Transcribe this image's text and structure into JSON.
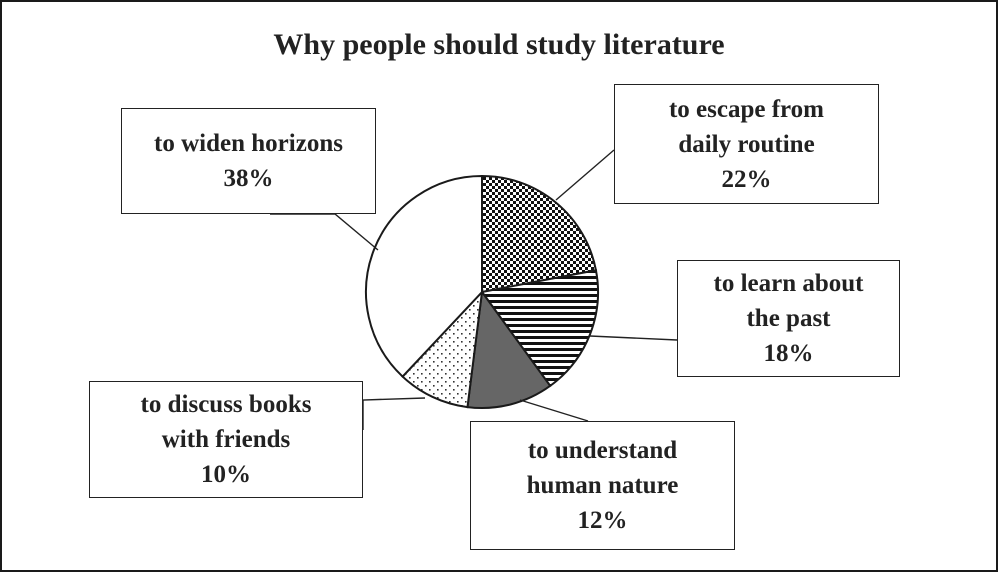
{
  "chart_data": {
    "type": "pie",
    "title": "Why people should study literature",
    "slices": [
      {
        "label": "to escape from daily routine",
        "lines": [
          "to escape from",
          "daily routine"
        ],
        "value": 22,
        "value_label": "22%",
        "pattern": "checker"
      },
      {
        "label": "to learn about the past",
        "lines": [
          "to learn about",
          "the past"
        ],
        "value": 18,
        "value_label": "18%",
        "pattern": "hstripes"
      },
      {
        "label": "to understand human nature",
        "lines": [
          "to understand",
          "human nature"
        ],
        "value": 12,
        "value_label": "12%",
        "pattern": "dark"
      },
      {
        "label": "to discuss books with friends",
        "lines": [
          "to discuss books",
          "with friends"
        ],
        "value": 10,
        "value_label": "10%",
        "pattern": "dots"
      },
      {
        "label": "to widen horizons",
        "lines": [
          "to widen horizons"
        ],
        "value": 38,
        "value_label": "38%",
        "pattern": "white"
      }
    ],
    "colors": {
      "outline": "#1a1a1a",
      "dark_fill": "#666666",
      "white_fill": "#ffffff"
    }
  }
}
